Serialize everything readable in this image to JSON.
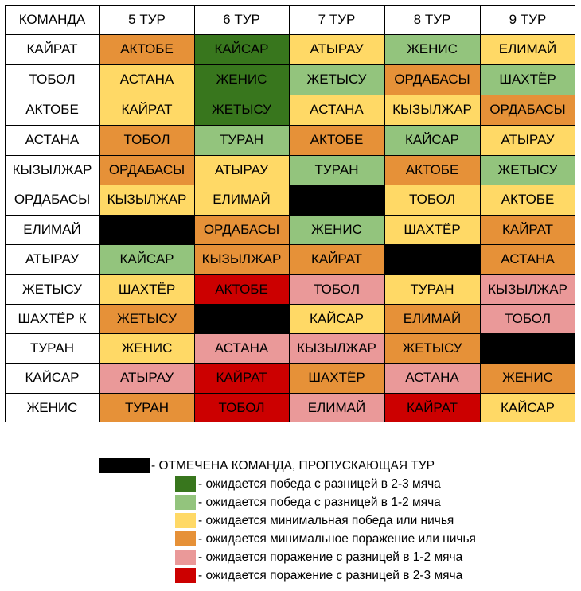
{
  "chart_data": {
    "type": "table",
    "header": [
      "КОМАНДА",
      "5 ТУР",
      "6 ТУР",
      "7 ТУР",
      "8 ТУР",
      "9 ТУР"
    ],
    "rows": [
      {
        "team": "КАЙРАТ",
        "cells": [
          [
            "АКТОБЕ",
            "mid_loss"
          ],
          [
            "КАЙСАР",
            "big_win"
          ],
          [
            "АТЫРАУ",
            "draw"
          ],
          [
            "ЖЕНИС",
            "win"
          ],
          [
            "ЕЛИМАЙ",
            "draw"
          ]
        ]
      },
      {
        "team": "ТОБОЛ",
        "cells": [
          [
            "АСТАНА",
            "draw"
          ],
          [
            "ЖЕНИС",
            "big_win"
          ],
          [
            "ЖЕТЫСУ",
            "win"
          ],
          [
            "ОРДАБАСЫ",
            "mid_loss"
          ],
          [
            "ШАХТЁР",
            "win"
          ]
        ]
      },
      {
        "team": "АКТОБЕ",
        "cells": [
          [
            "КАЙРАТ",
            "draw"
          ],
          [
            "ЖЕТЫСУ",
            "big_win"
          ],
          [
            "АСТАНА",
            "draw"
          ],
          [
            "КЫЗЫЛЖАР",
            "draw"
          ],
          [
            "ОРДАБАСЫ",
            "mid_loss"
          ]
        ]
      },
      {
        "team": "АСТАНА",
        "cells": [
          [
            "ТОБОЛ",
            "mid_loss"
          ],
          [
            "ТУРАН",
            "win"
          ],
          [
            "АКТОБЕ",
            "mid_loss"
          ],
          [
            "КАЙСАР",
            "win"
          ],
          [
            "АТЫРАУ",
            "draw"
          ]
        ]
      },
      {
        "team": "КЫЗЫЛЖАР",
        "cells": [
          [
            "ОРДАБАСЫ",
            "mid_loss"
          ],
          [
            "АТЫРАУ",
            "draw"
          ],
          [
            "ТУРАН",
            "win"
          ],
          [
            "АКТОБЕ",
            "mid_loss"
          ],
          [
            "ЖЕТЫСУ",
            "win"
          ]
        ]
      },
      {
        "team": "ОРДАБАСЫ",
        "cells": [
          [
            "КЫЗЫЛЖАР",
            "draw"
          ],
          [
            "ЕЛИМАЙ",
            "draw"
          ],
          [
            "",
            "bye"
          ],
          [
            "ТОБОЛ",
            "draw"
          ],
          [
            "АКТОБЕ",
            "draw"
          ]
        ]
      },
      {
        "team": "ЕЛИМАЙ",
        "cells": [
          [
            "",
            "bye"
          ],
          [
            "ОРДАБАСЫ",
            "mid_loss"
          ],
          [
            "ЖЕНИС",
            "win"
          ],
          [
            "ШАХТЁР",
            "draw"
          ],
          [
            "КАЙРАТ",
            "mid_loss"
          ]
        ]
      },
      {
        "team": "АТЫРАУ",
        "cells": [
          [
            "КАЙСАР",
            "win"
          ],
          [
            "КЫЗЫЛЖАР",
            "mid_loss"
          ],
          [
            "КАЙРАТ",
            "mid_loss"
          ],
          [
            "",
            "bye"
          ],
          [
            "АСТАНА",
            "mid_loss"
          ]
        ]
      },
      {
        "team": "ЖЕТЫСУ",
        "cells": [
          [
            "ШАХТЁР",
            "draw"
          ],
          [
            "АКТОБЕ",
            "big_loss"
          ],
          [
            "ТОБОЛ",
            "loss"
          ],
          [
            "ТУРАН",
            "draw"
          ],
          [
            "КЫЗЫЛЖАР",
            "loss"
          ]
        ]
      },
      {
        "team": "ШАХТЁР К",
        "cells": [
          [
            "ЖЕТЫСУ",
            "mid_loss"
          ],
          [
            "",
            "bye"
          ],
          [
            "КАЙСАР",
            "draw"
          ],
          [
            "ЕЛИМАЙ",
            "mid_loss"
          ],
          [
            "ТОБОЛ",
            "loss"
          ]
        ]
      },
      {
        "team": "ТУРАН",
        "cells": [
          [
            "ЖЕНИС",
            "draw"
          ],
          [
            "АСТАНА",
            "loss"
          ],
          [
            "КЫЗЫЛЖАР",
            "loss"
          ],
          [
            "ЖЕТЫСУ",
            "mid_loss"
          ],
          [
            "",
            "bye"
          ]
        ]
      },
      {
        "team": "КАЙСАР",
        "cells": [
          [
            "АТЫРАУ",
            "loss"
          ],
          [
            "КАЙРАТ",
            "big_loss"
          ],
          [
            "ШАХТЁР",
            "mid_loss"
          ],
          [
            "АСТАНА",
            "loss"
          ],
          [
            "ЖЕНИС",
            "mid_loss"
          ]
        ]
      },
      {
        "team": "ЖЕНИС",
        "cells": [
          [
            "ТУРАН",
            "mid_loss"
          ],
          [
            "ТОБОЛ",
            "big_loss"
          ],
          [
            "ЕЛИМАЙ",
            "loss"
          ],
          [
            "КАЙРАТ",
            "big_loss"
          ],
          [
            "КАЙСАР",
            "draw"
          ]
        ]
      }
    ],
    "legend": [
      {
        "key": "bye",
        "label": "- ОТМЕЧЕНА КОМАНДА, ПРОПУСКАЮЩАЯ ТУР"
      },
      {
        "key": "big_win",
        "label": "- ожидается победа с разницей в 2-3 мяча"
      },
      {
        "key": "win",
        "label": "- ожидается победа с разницей в 1-2 мяча"
      },
      {
        "key": "draw",
        "label": "- ожидается минимальная победа или ничья"
      },
      {
        "key": "mid_loss",
        "label": "- ожидается минимальное поражение или ничья"
      },
      {
        "key": "loss",
        "label": "- ожидается поражение с разницей в 1-2 мяча"
      },
      {
        "key": "big_loss",
        "label": "- ожидается поражение с разницей в 2-3 мяча"
      }
    ],
    "colors": {
      "bye": "#000000",
      "big_win": "#38761d",
      "win": "#93c47d",
      "draw": "#ffd966",
      "mid_loss": "#e69138",
      "loss": "#ea9999",
      "big_loss": "#cc0000",
      "header": "#ffffff"
    }
  }
}
